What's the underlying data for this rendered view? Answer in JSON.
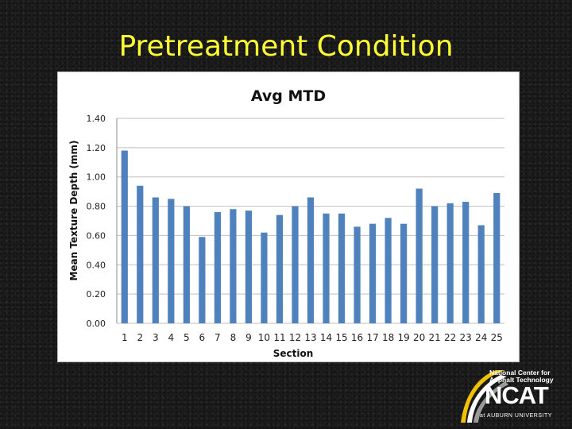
{
  "slide": {
    "title": "Pretreatment Condition"
  },
  "chart_data": {
    "type": "bar",
    "title": "Avg MTD",
    "xlabel": "Section",
    "ylabel": "Mean Texture Depth (mm)",
    "ylim": [
      0,
      1.4
    ],
    "yticks": [
      "0.00",
      "0.20",
      "0.40",
      "0.60",
      "0.80",
      "1.00",
      "1.20",
      "1.40"
    ],
    "grid": true,
    "categories": [
      "1",
      "2",
      "3",
      "4",
      "5",
      "6",
      "7",
      "8",
      "9",
      "10",
      "11",
      "12",
      "13",
      "14",
      "15",
      "16",
      "17",
      "18",
      "19",
      "20",
      "21",
      "22",
      "23",
      "24",
      "25"
    ],
    "values": [
      1.18,
      0.94,
      0.86,
      0.85,
      0.8,
      0.59,
      0.76,
      0.78,
      0.77,
      0.62,
      0.74,
      0.8,
      0.86,
      0.75,
      0.75,
      0.66,
      0.68,
      0.72,
      0.68,
      0.92,
      0.8,
      0.82,
      0.83,
      0.67,
      0.89
    ],
    "bar_color": "#4f81bd",
    "grid_color": "#bfbfbf"
  },
  "logo": {
    "line1": "National Center for",
    "line2": "Asphalt Technology",
    "wordmark": "NCAT",
    "tagline": "at AUBURN UNIVERSITY",
    "accent": "#f2c200"
  }
}
